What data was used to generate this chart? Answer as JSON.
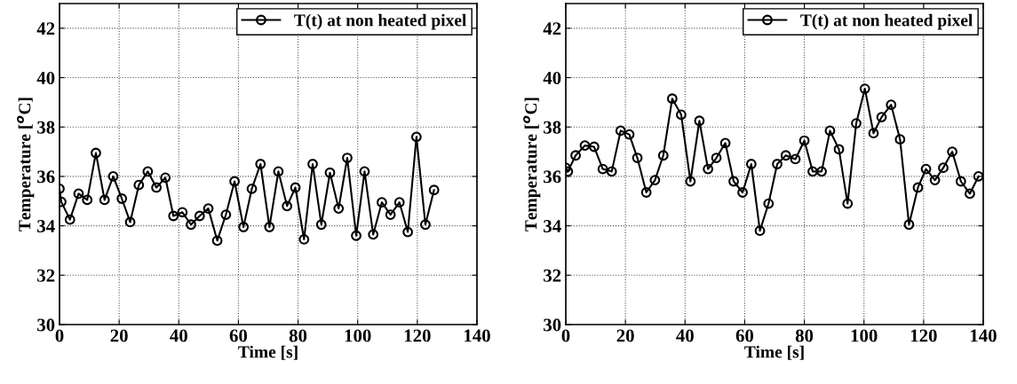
{
  "chart_data": [
    {
      "type": "line",
      "xlabel": "Time [s]",
      "ylabel": "Temperature [$^{o}$C]",
      "xlim": [
        0,
        140
      ],
      "ylim": [
        30,
        43
      ],
      "xticks": [
        0,
        20,
        40,
        60,
        80,
        100,
        120,
        140
      ],
      "yticks": [
        30,
        32,
        34,
        36,
        38,
        40,
        42
      ],
      "grid": true,
      "legend": "top right",
      "marker": "circle",
      "line_style": "solid",
      "series": [
        {
          "name": "T(t) at non heated pixel",
          "color": "#000000",
          "x": [
            0,
            0.6,
            3.5,
            6.4,
            9.3,
            12.2,
            15.1,
            18,
            20.9,
            23.7,
            26.6,
            29.6,
            32.5,
            35.5,
            38.2,
            41.2,
            44.1,
            47,
            49.9,
            52.9,
            55.8,
            58.7,
            61.7,
            64.5,
            67.4,
            70.4,
            73.4,
            76.3,
            79.1,
            82,
            84.9,
            87.8,
            90.7,
            93.6,
            96.5,
            99.5,
            102.3,
            105.2,
            108.1,
            111,
            114,
            116.8,
            119.7,
            122.7,
            125.6
          ],
          "values": [
            35.5,
            34.97,
            34.25,
            35.3,
            35.05,
            36.95,
            35.05,
            36.0,
            35.1,
            34.15,
            35.65,
            36.2,
            35.55,
            35.95,
            34.4,
            34.55,
            34.05,
            34.4,
            34.7,
            33.4,
            34.45,
            35.8,
            33.95,
            35.5,
            36.5,
            33.95,
            36.2,
            34.8,
            35.55,
            33.45,
            36.5,
            34.05,
            36.15,
            34.7,
            36.75,
            33.6,
            36.2,
            33.65,
            34.95,
            34.45,
            34.95,
            33.75,
            37.6,
            34.05,
            35.45
          ]
        }
      ]
    },
    {
      "type": "line",
      "xlabel": "Time [s]",
      "ylabel": "Temperature [$^{o}$C]",
      "xlim": [
        0,
        140
      ],
      "ylim": [
        30,
        43
      ],
      "xticks": [
        0,
        20,
        40,
        60,
        80,
        100,
        120,
        140
      ],
      "yticks": [
        30,
        32,
        34,
        36,
        38,
        40,
        42
      ],
      "grid": true,
      "legend": "top right",
      "marker": "circle",
      "line_style": "solid",
      "series": [
        {
          "name": "T(t) at non heated pixel",
          "color": "#000000",
          "x": [
            0,
            0.7,
            3.3,
            6.4,
            9.5,
            12.4,
            15.4,
            18.4,
            21.3,
            24,
            27,
            29.9,
            32.7,
            35.7,
            38.7,
            41.8,
            44.8,
            47.7,
            50.5,
            53.5,
            56.3,
            59.3,
            62.2,
            65.1,
            68,
            70.9,
            73.8,
            77,
            80,
            82.8,
            85.8,
            88.6,
            91.6,
            94.5,
            97.4,
            100.3,
            103.2,
            105.9,
            109.1,
            112.1,
            115.1,
            118.1,
            120.8,
            123.8,
            126.6,
            129.6,
            132.5,
            135.5,
            138.4
          ],
          "values": [
            36.35,
            36.2,
            36.85,
            37.25,
            37.2,
            36.3,
            36.2,
            37.85,
            37.7,
            36.75,
            35.35,
            35.85,
            36.85,
            39.15,
            38.5,
            35.8,
            38.25,
            36.3,
            36.75,
            37.35,
            35.8,
            35.35,
            36.5,
            33.8,
            34.9,
            36.5,
            36.85,
            36.7,
            37.45,
            36.2,
            36.2,
            37.85,
            37.1,
            34.9,
            38.15,
            39.55,
            37.75,
            38.4,
            38.9,
            37.5,
            34.05,
            35.55,
            36.3,
            35.85,
            36.35,
            37.0,
            35.8,
            35.3,
            36.0
          ]
        }
      ]
    }
  ]
}
